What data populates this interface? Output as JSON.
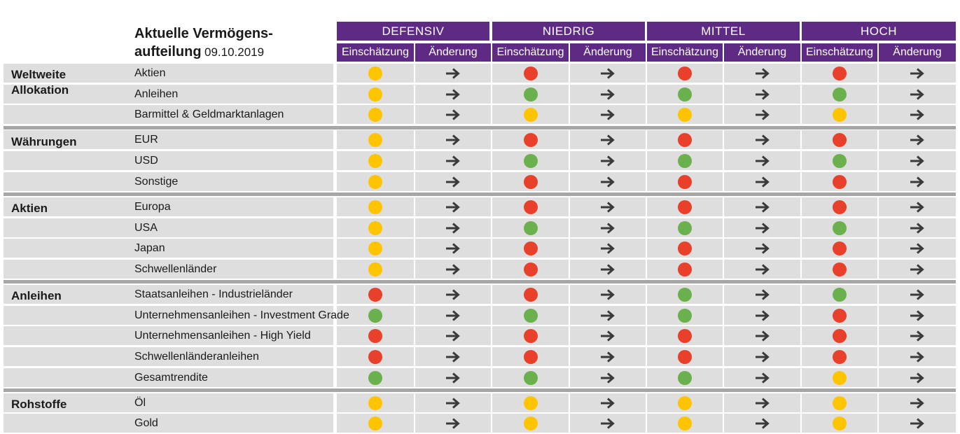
{
  "title": {
    "line1": "Aktuelle Vermögens-",
    "line2": "aufteilung",
    "date": "09.10.2019"
  },
  "profiles": [
    "DEFENSIV",
    "NIEDRIG",
    "MITTEL",
    "HOCH"
  ],
  "subheaders": {
    "assessment": "Einschätzung",
    "change": "Änderung"
  },
  "colors": {
    "green": "#6ab04c",
    "yellow": "#ffc400",
    "red": "#e8402a",
    "purple": "#5e2a84",
    "arrow": "#3a3a3a"
  },
  "change_icon": "arrow-right-icon",
  "groups": [
    {
      "name": "Weltweite Allokation",
      "rows": [
        {
          "label": "Aktien",
          "ratings": [
            "yellow",
            "red",
            "red",
            "red"
          ]
        },
        {
          "label": "Anleihen",
          "ratings": [
            "yellow",
            "green",
            "green",
            "green"
          ]
        },
        {
          "label": "Barmittel & Geldmarktanlagen",
          "ratings": [
            "yellow",
            "yellow",
            "yellow",
            "yellow"
          ]
        }
      ]
    },
    {
      "name": "Währungen",
      "rows": [
        {
          "label": "EUR",
          "ratings": [
            "yellow",
            "red",
            "red",
            "red"
          ]
        },
        {
          "label": "USD",
          "ratings": [
            "yellow",
            "green",
            "green",
            "green"
          ]
        },
        {
          "label": "Sonstige",
          "ratings": [
            "yellow",
            "red",
            "red",
            "red"
          ]
        }
      ]
    },
    {
      "name": "Aktien",
      "rows": [
        {
          "label": "Europa",
          "ratings": [
            "yellow",
            "red",
            "red",
            "red"
          ]
        },
        {
          "label": "USA",
          "ratings": [
            "yellow",
            "green",
            "green",
            "green"
          ]
        },
        {
          "label": "Japan",
          "ratings": [
            "yellow",
            "red",
            "red",
            "red"
          ]
        },
        {
          "label": "Schwellenländer",
          "ratings": [
            "yellow",
            "red",
            "red",
            "red"
          ]
        }
      ]
    },
    {
      "name": "Anleihen",
      "rows": [
        {
          "label": "Staatsanleihen - Industrieländer",
          "ratings": [
            "red",
            "red",
            "green",
            "green"
          ]
        },
        {
          "label": "Unternehmensanleihen - Investment Grade",
          "ratings": [
            "green",
            "green",
            "green",
            "red"
          ]
        },
        {
          "label": "Unternehmensanleihen - High Yield",
          "ratings": [
            "red",
            "red",
            "red",
            "red"
          ]
        },
        {
          "label": "Schwellenländeranleihen",
          "ratings": [
            "red",
            "red",
            "red",
            "red"
          ]
        },
        {
          "label": "Gesamtrendite",
          "ratings": [
            "green",
            "green",
            "green",
            "yellow"
          ]
        }
      ]
    },
    {
      "name": "Rohstoffe",
      "rows": [
        {
          "label": "Öl",
          "ratings": [
            "yellow",
            "yellow",
            "yellow",
            "yellow"
          ]
        },
        {
          "label": "Gold",
          "ratings": [
            "yellow",
            "yellow",
            "yellow",
            "yellow"
          ]
        }
      ]
    }
  ]
}
